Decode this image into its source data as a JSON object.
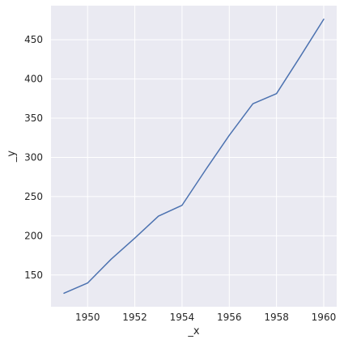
{
  "chart_data": {
    "type": "line",
    "title": "",
    "xlabel": "_x",
    "ylabel": "_y",
    "x": [
      1949,
      1950,
      1951,
      1952,
      1953,
      1954,
      1955,
      1956,
      1957,
      1958,
      1959,
      1960
    ],
    "series": [
      {
        "values": [
          126.7,
          139.7,
          170.2,
          197.0,
          225.0,
          238.9,
          284.2,
          328.1,
          368.4,
          381.3,
          428.3,
          476.2
        ]
      }
    ],
    "xlim": [
      1948.45,
      1960.55
    ],
    "ylim": [
      109.5,
      493.5
    ],
    "xticks": [
      1950,
      1952,
      1954,
      1956,
      1958,
      1960
    ],
    "yticks": [
      150,
      200,
      250,
      300,
      350,
      400,
      450
    ],
    "grid": true,
    "legend": "none",
    "colors": {
      "background": "#eaeaf2",
      "grid": "#ffffff",
      "line": "#4c72b0",
      "text": "#262626"
    }
  }
}
